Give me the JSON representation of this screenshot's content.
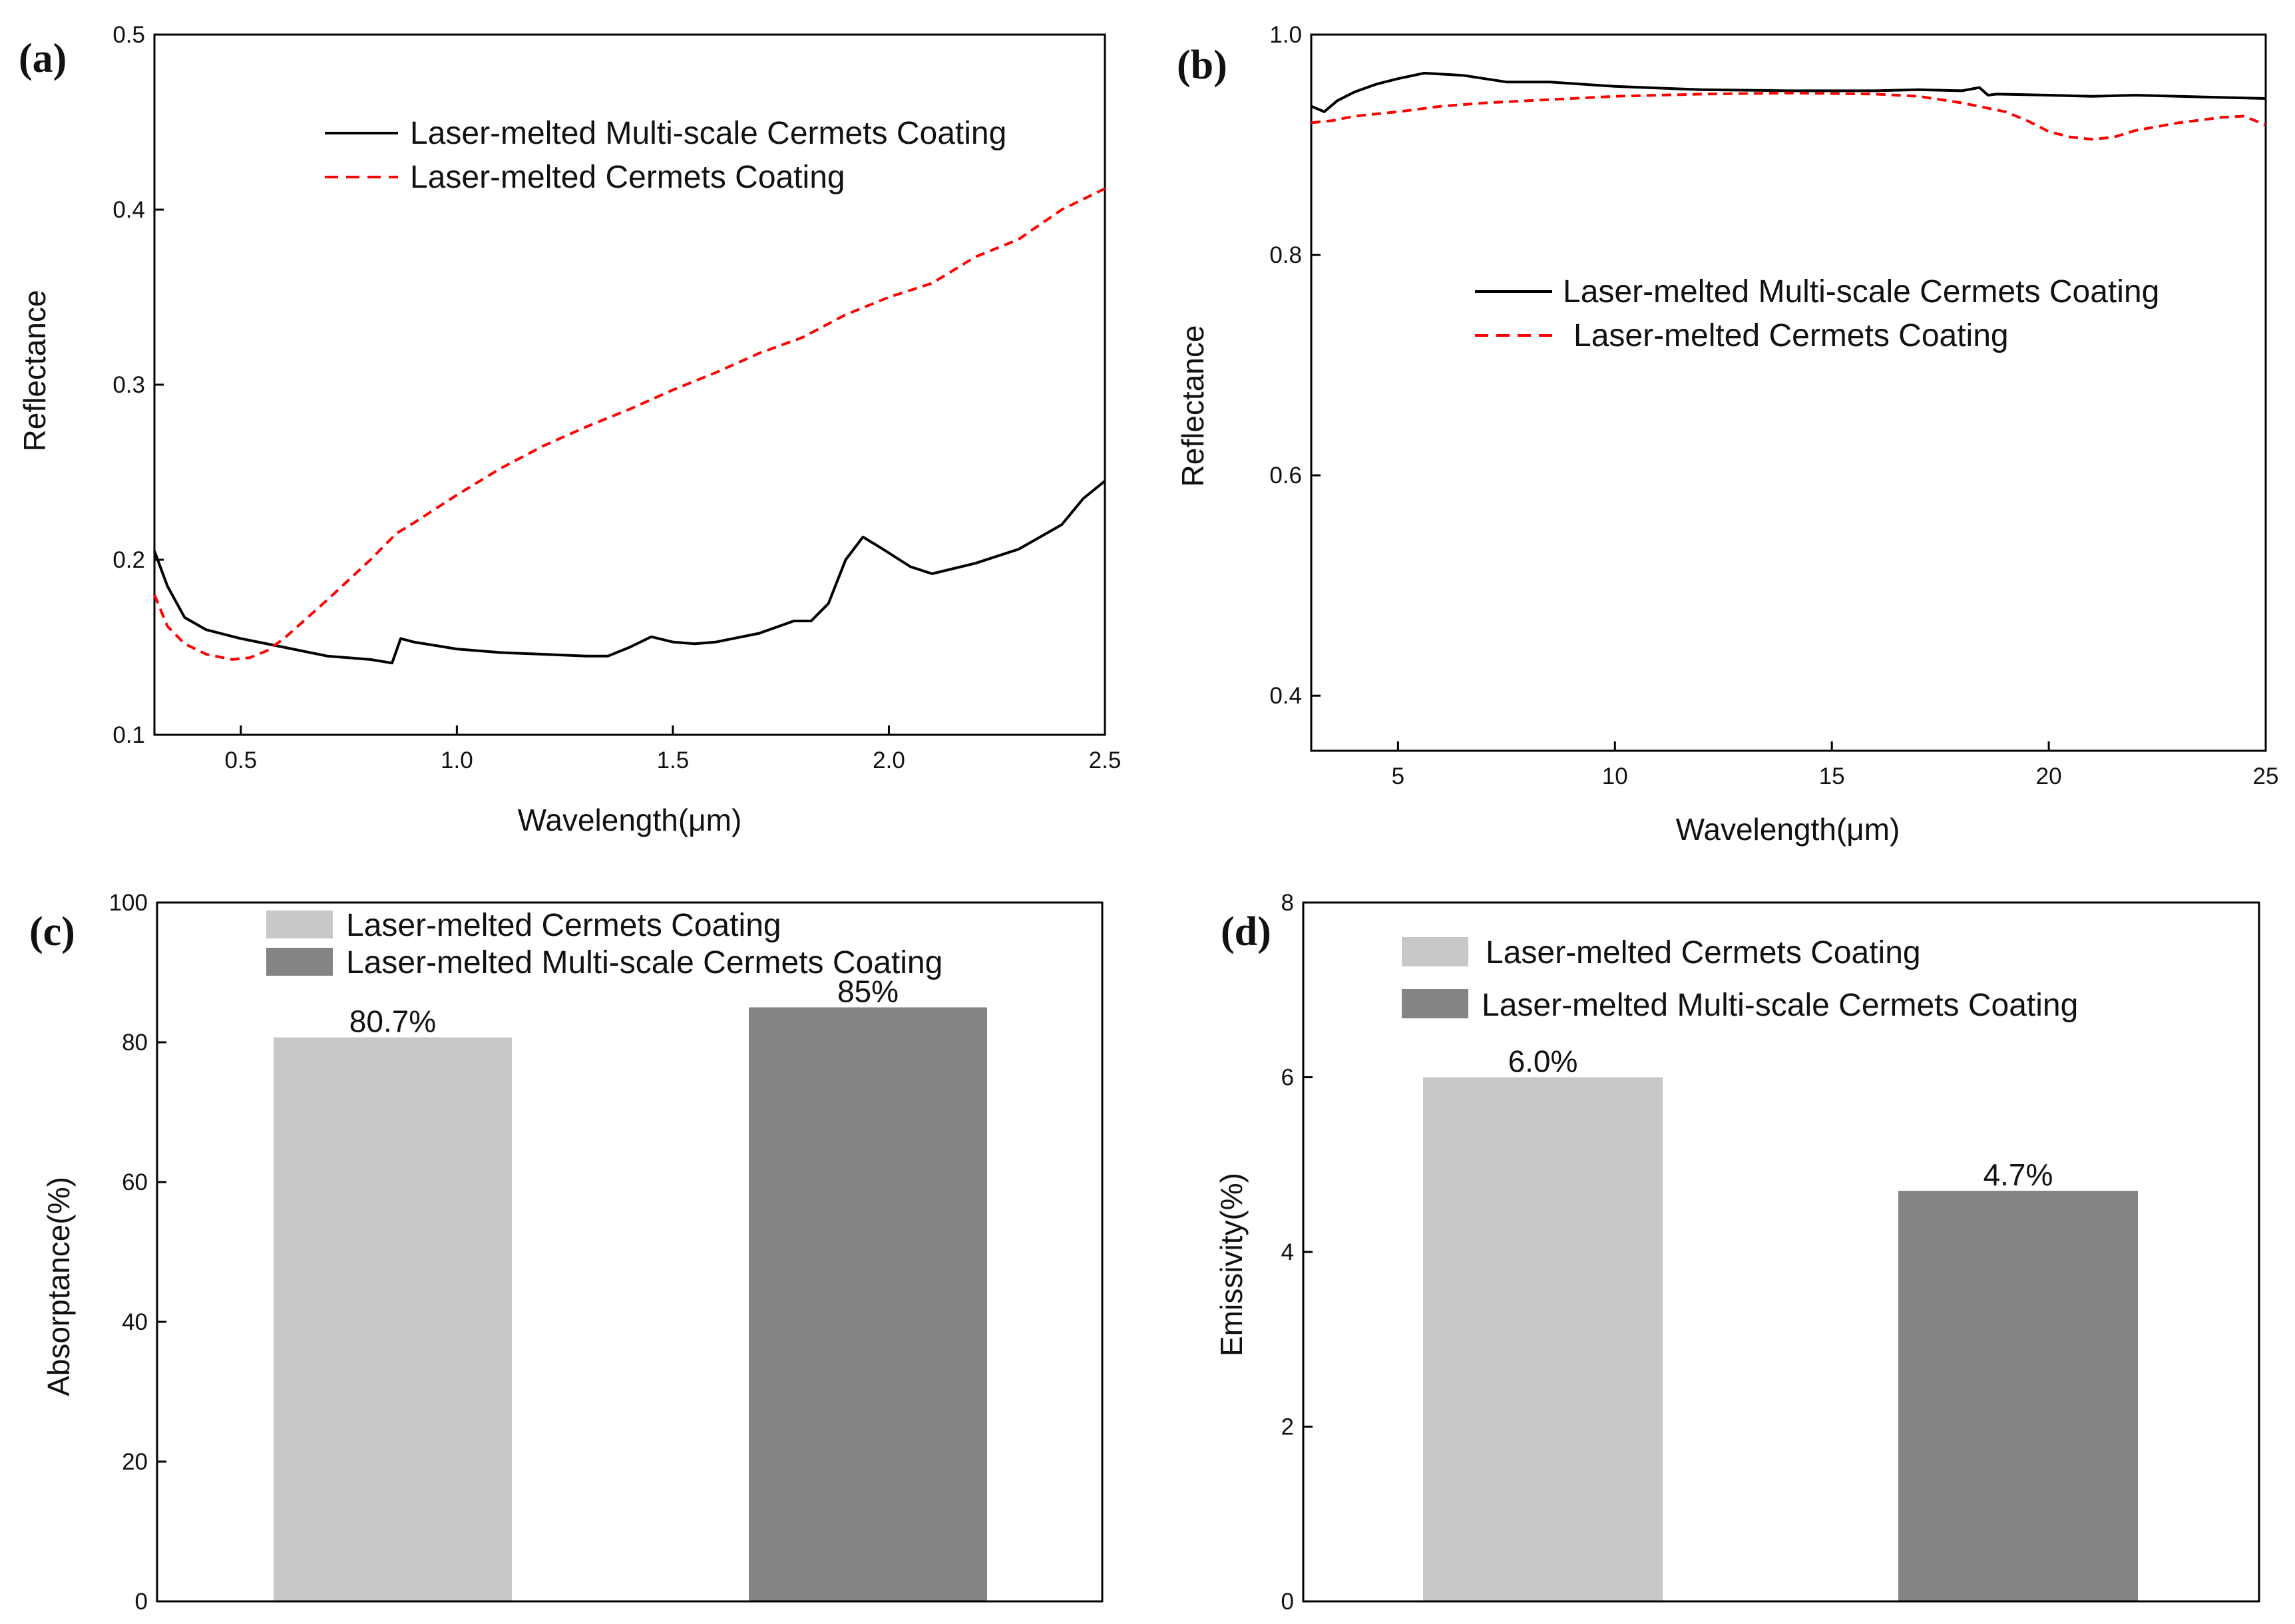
{
  "chart_data": [
    {
      "panel": "(a)",
      "type": "line",
      "xlabel": "Wavelength(μm)",
      "ylabel": "Reflectance",
      "xlim": [
        0.3,
        2.5
      ],
      "ylim": [
        0.1,
        0.5
      ],
      "xticks": [
        "0.5",
        "1.0",
        "1.5",
        "2.0",
        "2.5"
      ],
      "yticks": [
        "0.1",
        "0.2",
        "0.3",
        "0.4",
        "0.5"
      ],
      "legend_position": "top-right",
      "series": [
        {
          "name": "Laser-melted Multi-scale  Cermets Coating",
          "color": "#000000",
          "dash": "solid",
          "x": [
            0.3,
            0.33,
            0.37,
            0.42,
            0.5,
            0.6,
            0.7,
            0.8,
            0.85,
            0.86,
            0.87,
            0.9,
            1.0,
            1.1,
            1.2,
            1.3,
            1.35,
            1.4,
            1.45,
            1.5,
            1.55,
            1.6,
            1.7,
            1.78,
            1.82,
            1.86,
            1.9,
            1.94,
            1.98,
            2.05,
            2.1,
            2.2,
            2.3,
            2.4,
            2.45,
            2.5
          ],
          "y": [
            0.205,
            0.185,
            0.167,
            0.16,
            0.155,
            0.15,
            0.145,
            0.143,
            0.141,
            0.148,
            0.155,
            0.153,
            0.149,
            0.147,
            0.146,
            0.145,
            0.145,
            0.15,
            0.156,
            0.153,
            0.152,
            0.153,
            0.158,
            0.165,
            0.165,
            0.175,
            0.2,
            0.213,
            0.207,
            0.196,
            0.192,
            0.198,
            0.206,
            0.22,
            0.235,
            0.245
          ]
        },
        {
          "name": "Laser-melted Cermets Coating",
          "color": "#ff0000",
          "dash": "dashed",
          "x": [
            0.3,
            0.33,
            0.37,
            0.42,
            0.48,
            0.52,
            0.56,
            0.6,
            0.7,
            0.8,
            0.86,
            0.9,
            1.0,
            1.1,
            1.2,
            1.3,
            1.4,
            1.5,
            1.6,
            1.7,
            1.8,
            1.9,
            2.0,
            2.1,
            2.2,
            2.3,
            2.4,
            2.5
          ],
          "y": [
            0.18,
            0.162,
            0.152,
            0.146,
            0.143,
            0.144,
            0.148,
            0.155,
            0.177,
            0.2,
            0.215,
            0.221,
            0.237,
            0.252,
            0.265,
            0.276,
            0.286,
            0.297,
            0.307,
            0.318,
            0.327,
            0.34,
            0.35,
            0.358,
            0.373,
            0.383,
            0.4,
            0.412
          ]
        }
      ]
    },
    {
      "panel": "(b)",
      "type": "line",
      "xlabel": "Wavelength(μm)",
      "ylabel": "Reflectance",
      "xlim": [
        3,
        25
      ],
      "ylim": [
        0.35,
        1.0
      ],
      "xticks": [
        "5",
        "10",
        "15",
        "20",
        "25"
      ],
      "yticks": [
        "0.4",
        "0.6",
        "0.8",
        "1.0"
      ],
      "legend_position": "center-right",
      "series": [
        {
          "name": "Laser-melted Multi-scale  Cermets Coating",
          "color": "#000000",
          "dash": "solid",
          "x": [
            3,
            3.3,
            3.6,
            4,
            4.5,
            5,
            5.6,
            6.5,
            7.5,
            8.5,
            10,
            12,
            14,
            16,
            17,
            18,
            18.4,
            18.6,
            18.8,
            20,
            21,
            22,
            23,
            24,
            25
          ],
          "y": [
            0.935,
            0.93,
            0.94,
            0.948,
            0.955,
            0.96,
            0.965,
            0.963,
            0.957,
            0.957,
            0.953,
            0.95,
            0.949,
            0.949,
            0.95,
            0.949,
            0.952,
            0.945,
            0.946,
            0.945,
            0.944,
            0.945,
            0.944,
            0.943,
            0.942
          ]
        },
        {
          "name": "Laser-melted Cermets Coating",
          "color": "#ff0000",
          "dash": "dashed",
          "x": [
            3,
            3.5,
            4,
            5,
            6,
            7,
            8,
            10,
            12,
            14,
            16,
            17,
            18,
            19,
            19.5,
            20,
            20.5,
            21,
            21.5,
            22,
            23,
            24,
            24.5,
            25
          ],
          "y": [
            0.92,
            0.922,
            0.926,
            0.93,
            0.935,
            0.938,
            0.94,
            0.944,
            0.946,
            0.947,
            0.946,
            0.944,
            0.938,
            0.93,
            0.922,
            0.912,
            0.907,
            0.905,
            0.907,
            0.913,
            0.92,
            0.925,
            0.926,
            0.918
          ]
        }
      ]
    },
    {
      "panel": "(c)",
      "type": "bar",
      "ylabel": "Absorptance(%)",
      "ylim": [
        0,
        100
      ],
      "yticks": [
        "0",
        "20",
        "40",
        "60",
        "80",
        "100"
      ],
      "legend_position": "top",
      "categories": [
        "Laser-melted Cermets Coating",
        "Laser-melted Multi-scale  Cermets Coating"
      ],
      "values": [
        80.7,
        85
      ],
      "value_labels": [
        "80.7%",
        "85%"
      ],
      "colors": [
        "#c8c8c8",
        "#848484"
      ]
    },
    {
      "panel": "(d)",
      "type": "bar",
      "ylabel": "Emissivity(%)",
      "ylim": [
        0,
        8
      ],
      "yticks": [
        "0",
        "2",
        "4",
        "6",
        "8"
      ],
      "legend_position": "top",
      "categories": [
        "Laser-melted Cermets Coating",
        "Laser-melted Multi-scale  Cermets Coating"
      ],
      "values": [
        6.0,
        4.7
      ],
      "value_labels": [
        "6.0%",
        "4.7%"
      ],
      "colors": [
        "#c8c8c8",
        "#848484"
      ]
    }
  ]
}
